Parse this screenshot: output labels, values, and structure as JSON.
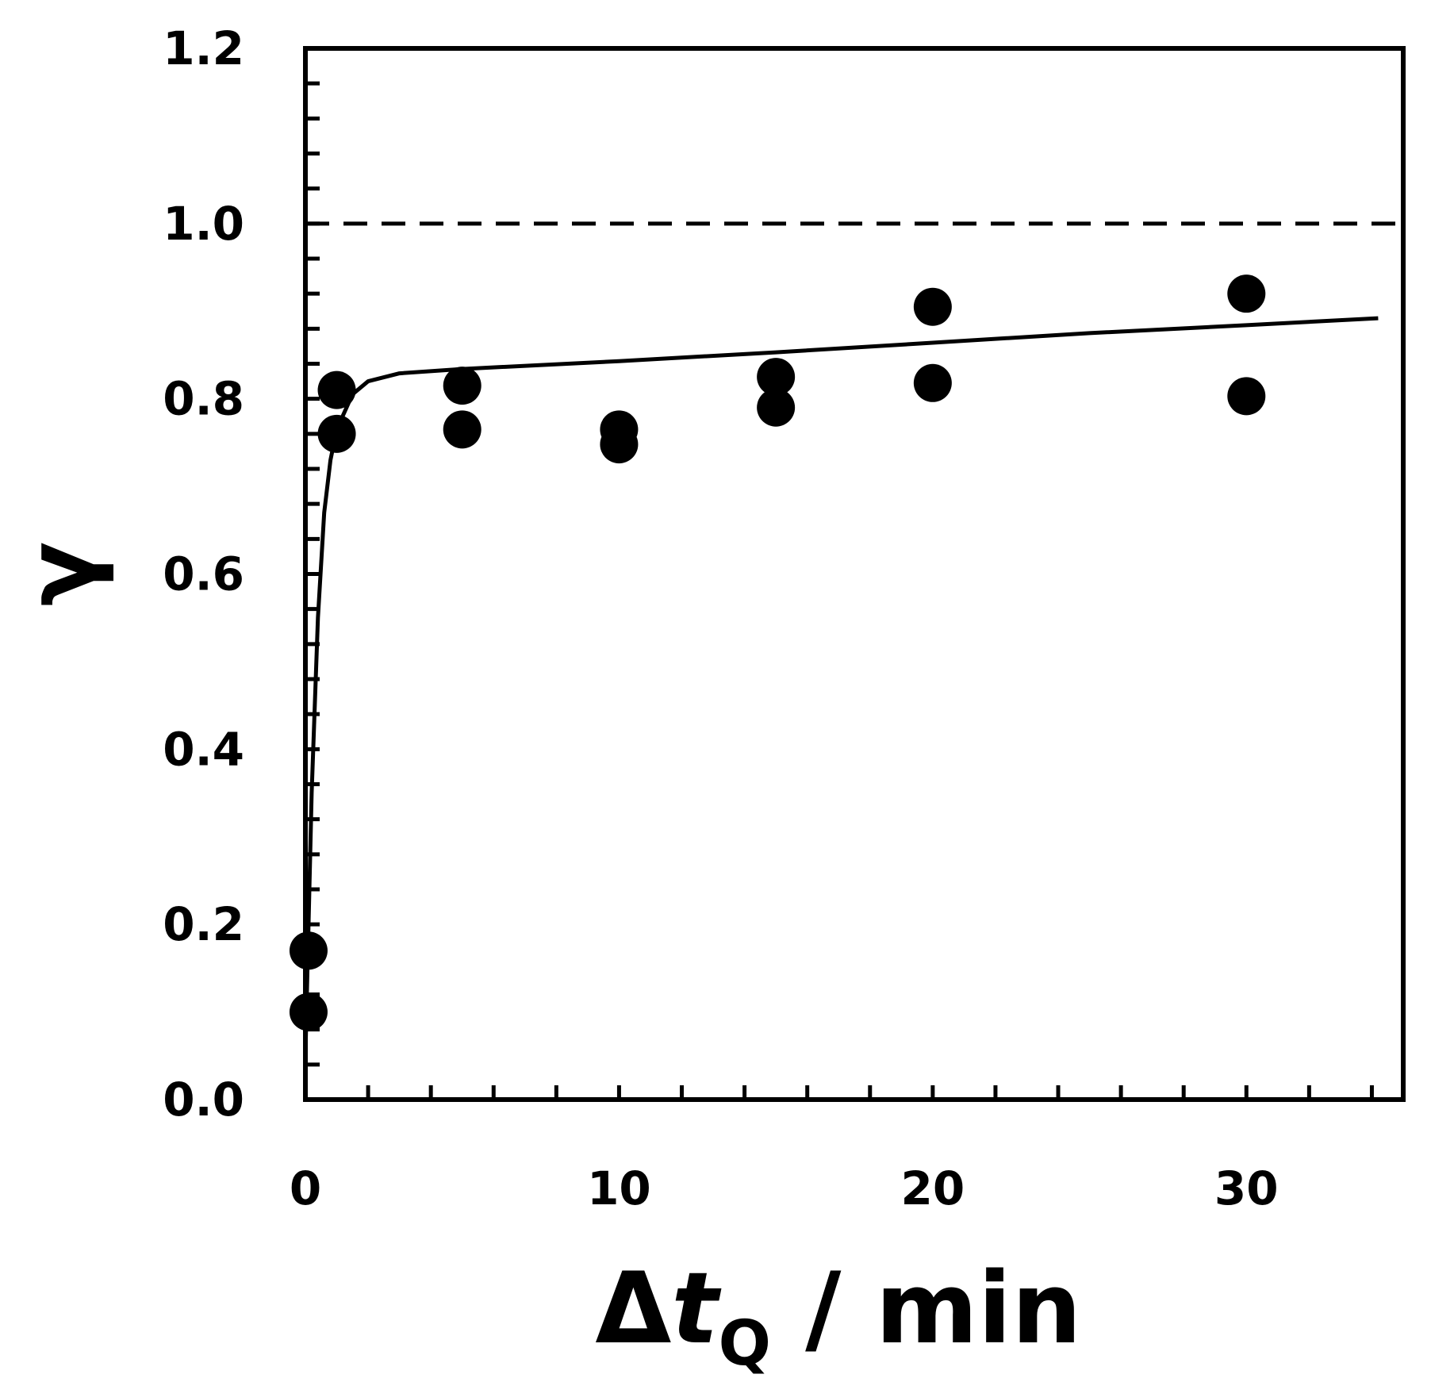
{
  "chart_data": {
    "type": "scatter",
    "title": "",
    "xlabel": {
      "delta": "Δ",
      "var": "t",
      "sub": "Q",
      "unit": " / min"
    },
    "ylabel": "γ",
    "xlim": [
      0,
      35
    ],
    "ylim": [
      0,
      1.2
    ],
    "x_ticks": [
      0,
      10,
      20,
      30
    ],
    "y_ticks": [
      0.0,
      0.2,
      0.4,
      0.6,
      0.8,
      1.0,
      1.2
    ],
    "x_ticklabels": [
      "0",
      "10",
      "20",
      "30"
    ],
    "y_ticklabels": [
      "0.0",
      "0.2",
      "0.4",
      "0.6",
      "0.8",
      "1.0",
      "1.2"
    ],
    "x_minor_step": 2,
    "y_minor_step": 0.04,
    "grid": false,
    "series": [
      {
        "kind": "points",
        "points": [
          {
            "x": 0.1,
            "y": 0.1
          },
          {
            "x": 0.1,
            "y": 0.17
          },
          {
            "x": 1.0,
            "y": 0.81
          },
          {
            "x": 1.0,
            "y": 0.76
          },
          {
            "x": 5.0,
            "y": 0.815
          },
          {
            "x": 5.0,
            "y": 0.765
          },
          {
            "x": 10.0,
            "y": 0.765
          },
          {
            "x": 10.0,
            "y": 0.748
          },
          {
            "x": 15.0,
            "y": 0.825
          },
          {
            "x": 15.0,
            "y": 0.79
          },
          {
            "x": 20.0,
            "y": 0.905
          },
          {
            "x": 20.0,
            "y": 0.818
          },
          {
            "x": 30.0,
            "y": 0.92
          },
          {
            "x": 30.0,
            "y": 0.803
          }
        ]
      },
      {
        "kind": "fit-line",
        "style": "solid",
        "points": [
          {
            "x": 0.0,
            "y": 0.05
          },
          {
            "x": 0.2,
            "y": 0.35
          },
          {
            "x": 0.4,
            "y": 0.55
          },
          {
            "x": 0.6,
            "y": 0.67
          },
          {
            "x": 0.8,
            "y": 0.73
          },
          {
            "x": 1.0,
            "y": 0.765
          },
          {
            "x": 1.5,
            "y": 0.805
          },
          {
            "x": 2.0,
            "y": 0.82
          },
          {
            "x": 3.0,
            "y": 0.829
          },
          {
            "x": 5.0,
            "y": 0.834
          },
          {
            "x": 10.0,
            "y": 0.843
          },
          {
            "x": 15.0,
            "y": 0.853
          },
          {
            "x": 20.0,
            "y": 0.864
          },
          {
            "x": 25.0,
            "y": 0.875
          },
          {
            "x": 30.0,
            "y": 0.884
          },
          {
            "x": 34.2,
            "y": 0.892
          }
        ]
      },
      {
        "kind": "reference-line",
        "style": "dashed",
        "y": 1.0
      }
    ],
    "colors": {
      "ink": "#000000",
      "background": "#ffffff"
    }
  }
}
